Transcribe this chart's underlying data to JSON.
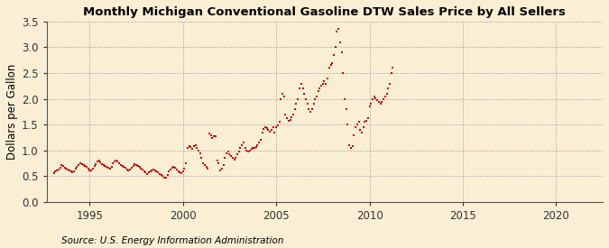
{
  "title": "Monthly Michigan Conventional Gasoline DTW Sales Price by All Sellers",
  "ylabel": "Dollars per Gallon",
  "source": "Source: U.S. Energy Information Administration",
  "background_color": "#faefd4",
  "plot_bg_color": "#faefd4",
  "marker_color": "#cc0000",
  "xlim": [
    1992.7,
    2022.5
  ],
  "ylim": [
    0.0,
    3.5
  ],
  "yticks": [
    0.0,
    0.5,
    1.0,
    1.5,
    2.0,
    2.5,
    3.0,
    3.5
  ],
  "xticks": [
    1995,
    2000,
    2005,
    2010,
    2015,
    2020
  ],
  "data": [
    [
      1993.08,
      0.56
    ],
    [
      1993.17,
      0.59
    ],
    [
      1993.25,
      0.62
    ],
    [
      1993.33,
      0.63
    ],
    [
      1993.42,
      0.67
    ],
    [
      1993.5,
      0.72
    ],
    [
      1993.58,
      0.7
    ],
    [
      1993.67,
      0.67
    ],
    [
      1993.75,
      0.64
    ],
    [
      1993.83,
      0.63
    ],
    [
      1993.92,
      0.62
    ],
    [
      1994.0,
      0.6
    ],
    [
      1994.08,
      0.58
    ],
    [
      1994.17,
      0.6
    ],
    [
      1994.25,
      0.65
    ],
    [
      1994.33,
      0.68
    ],
    [
      1994.42,
      0.72
    ],
    [
      1994.5,
      0.75
    ],
    [
      1994.58,
      0.74
    ],
    [
      1994.67,
      0.72
    ],
    [
      1994.75,
      0.7
    ],
    [
      1994.83,
      0.68
    ],
    [
      1994.92,
      0.65
    ],
    [
      1995.0,
      0.62
    ],
    [
      1995.08,
      0.61
    ],
    [
      1995.17,
      0.65
    ],
    [
      1995.25,
      0.7
    ],
    [
      1995.33,
      0.74
    ],
    [
      1995.42,
      0.78
    ],
    [
      1995.5,
      0.8
    ],
    [
      1995.58,
      0.77
    ],
    [
      1995.67,
      0.74
    ],
    [
      1995.75,
      0.72
    ],
    [
      1995.83,
      0.7
    ],
    [
      1995.92,
      0.68
    ],
    [
      1996.0,
      0.66
    ],
    [
      1996.08,
      0.65
    ],
    [
      1996.17,
      0.69
    ],
    [
      1996.25,
      0.75
    ],
    [
      1996.33,
      0.78
    ],
    [
      1996.42,
      0.8
    ],
    [
      1996.5,
      0.78
    ],
    [
      1996.58,
      0.75
    ],
    [
      1996.67,
      0.72
    ],
    [
      1996.75,
      0.7
    ],
    [
      1996.83,
      0.68
    ],
    [
      1996.92,
      0.66
    ],
    [
      1997.0,
      0.63
    ],
    [
      1997.08,
      0.61
    ],
    [
      1997.17,
      0.63
    ],
    [
      1997.25,
      0.67
    ],
    [
      1997.33,
      0.7
    ],
    [
      1997.42,
      0.73
    ],
    [
      1997.5,
      0.72
    ],
    [
      1997.58,
      0.7
    ],
    [
      1997.67,
      0.68
    ],
    [
      1997.75,
      0.65
    ],
    [
      1997.83,
      0.63
    ],
    [
      1997.92,
      0.6
    ],
    [
      1998.0,
      0.57
    ],
    [
      1998.08,
      0.55
    ],
    [
      1998.17,
      0.57
    ],
    [
      1998.25,
      0.6
    ],
    [
      1998.33,
      0.62
    ],
    [
      1998.42,
      0.63
    ],
    [
      1998.5,
      0.62
    ],
    [
      1998.58,
      0.6
    ],
    [
      1998.67,
      0.57
    ],
    [
      1998.75,
      0.55
    ],
    [
      1998.83,
      0.53
    ],
    [
      1998.92,
      0.51
    ],
    [
      1999.0,
      0.48
    ],
    [
      1999.08,
      0.47
    ],
    [
      1999.17,
      0.52
    ],
    [
      1999.25,
      0.59
    ],
    [
      1999.33,
      0.63
    ],
    [
      1999.42,
      0.67
    ],
    [
      1999.5,
      0.68
    ],
    [
      1999.58,
      0.66
    ],
    [
      1999.67,
      0.63
    ],
    [
      1999.75,
      0.6
    ],
    [
      1999.83,
      0.57
    ],
    [
      1999.92,
      0.56
    ],
    [
      2000.0,
      0.6
    ],
    [
      2000.08,
      0.65
    ],
    [
      2000.17,
      0.75
    ],
    [
      2000.25,
      1.05
    ],
    [
      2000.33,
      1.08
    ],
    [
      2000.42,
      1.06
    ],
    [
      2000.5,
      1.04
    ],
    [
      2000.58,
      1.08
    ],
    [
      2000.67,
      1.1
    ],
    [
      2000.75,
      1.05
    ],
    [
      2000.83,
      1.0
    ],
    [
      2000.92,
      0.95
    ],
    [
      2001.0,
      0.85
    ],
    [
      2001.08,
      0.75
    ],
    [
      2001.17,
      0.72
    ],
    [
      2001.25,
      0.68
    ],
    [
      2001.33,
      0.65
    ],
    [
      2001.42,
      1.33
    ],
    [
      2001.5,
      1.3
    ],
    [
      2001.58,
      1.25
    ],
    [
      2001.67,
      1.27
    ],
    [
      2001.75,
      1.28
    ],
    [
      2001.83,
      0.8
    ],
    [
      2001.92,
      0.75
    ],
    [
      2002.0,
      0.62
    ],
    [
      2002.08,
      0.65
    ],
    [
      2002.17,
      0.72
    ],
    [
      2002.25,
      0.85
    ],
    [
      2002.33,
      0.95
    ],
    [
      2002.42,
      0.98
    ],
    [
      2002.5,
      0.92
    ],
    [
      2002.58,
      0.9
    ],
    [
      2002.67,
      0.85
    ],
    [
      2002.75,
      0.82
    ],
    [
      2002.83,
      0.85
    ],
    [
      2002.92,
      0.92
    ],
    [
      2003.0,
      0.98
    ],
    [
      2003.08,
      1.05
    ],
    [
      2003.17,
      1.1
    ],
    [
      2003.25,
      1.15
    ],
    [
      2003.33,
      1.05
    ],
    [
      2003.42,
      1.0
    ],
    [
      2003.5,
      0.98
    ],
    [
      2003.58,
      1.0
    ],
    [
      2003.67,
      1.03
    ],
    [
      2003.75,
      1.05
    ],
    [
      2003.83,
      1.05
    ],
    [
      2003.92,
      1.07
    ],
    [
      2004.0,
      1.1
    ],
    [
      2004.08,
      1.15
    ],
    [
      2004.17,
      1.2
    ],
    [
      2004.25,
      1.35
    ],
    [
      2004.33,
      1.42
    ],
    [
      2004.42,
      1.45
    ],
    [
      2004.5,
      1.43
    ],
    [
      2004.58,
      1.4
    ],
    [
      2004.67,
      1.37
    ],
    [
      2004.75,
      1.4
    ],
    [
      2004.83,
      1.45
    ],
    [
      2004.92,
      1.35
    ],
    [
      2005.0,
      1.45
    ],
    [
      2005.08,
      1.48
    ],
    [
      2005.17,
      1.55
    ],
    [
      2005.25,
      2.0
    ],
    [
      2005.33,
      2.1
    ],
    [
      2005.42,
      2.05
    ],
    [
      2005.5,
      1.7
    ],
    [
      2005.58,
      1.62
    ],
    [
      2005.67,
      1.58
    ],
    [
      2005.75,
      1.6
    ],
    [
      2005.83,
      1.65
    ],
    [
      2005.92,
      1.7
    ],
    [
      2006.0,
      1.8
    ],
    [
      2006.08,
      1.9
    ],
    [
      2006.17,
      2.0
    ],
    [
      2006.25,
      2.2
    ],
    [
      2006.33,
      2.3
    ],
    [
      2006.42,
      2.2
    ],
    [
      2006.5,
      2.1
    ],
    [
      2006.58,
      2.0
    ],
    [
      2006.67,
      1.9
    ],
    [
      2006.75,
      1.8
    ],
    [
      2006.83,
      1.75
    ],
    [
      2006.92,
      1.8
    ],
    [
      2007.0,
      1.9
    ],
    [
      2007.08,
      2.0
    ],
    [
      2007.17,
      2.05
    ],
    [
      2007.25,
      2.15
    ],
    [
      2007.33,
      2.2
    ],
    [
      2007.42,
      2.25
    ],
    [
      2007.5,
      2.3
    ],
    [
      2007.58,
      2.35
    ],
    [
      2007.67,
      2.3
    ],
    [
      2007.75,
      2.4
    ],
    [
      2007.83,
      2.6
    ],
    [
      2007.92,
      2.65
    ],
    [
      2008.0,
      2.7
    ],
    [
      2008.08,
      2.85
    ],
    [
      2008.17,
      3.0
    ],
    [
      2008.25,
      3.3
    ],
    [
      2008.33,
      3.35
    ],
    [
      2008.42,
      3.1
    ],
    [
      2008.5,
      2.9
    ],
    [
      2008.58,
      2.5
    ],
    [
      2008.67,
      2.0
    ],
    [
      2008.75,
      1.8
    ],
    [
      2008.83,
      1.5
    ],
    [
      2008.92,
      1.1
    ],
    [
      2009.0,
      1.05
    ],
    [
      2009.08,
      1.08
    ],
    [
      2009.17,
      1.3
    ],
    [
      2009.25,
      1.45
    ],
    [
      2009.33,
      1.5
    ],
    [
      2009.42,
      1.55
    ],
    [
      2009.5,
      1.4
    ],
    [
      2009.58,
      1.35
    ],
    [
      2009.67,
      1.45
    ],
    [
      2009.75,
      1.55
    ],
    [
      2009.83,
      1.58
    ],
    [
      2009.92,
      1.62
    ],
    [
      2010.0,
      1.85
    ],
    [
      2010.08,
      1.9
    ],
    [
      2010.17,
      2.0
    ],
    [
      2010.25,
      2.05
    ],
    [
      2010.33,
      2.02
    ],
    [
      2010.42,
      1.98
    ],
    [
      2010.5,
      1.95
    ],
    [
      2010.58,
      1.9
    ],
    [
      2010.67,
      1.95
    ],
    [
      2010.75,
      2.0
    ],
    [
      2010.83,
      2.05
    ],
    [
      2010.92,
      2.1
    ],
    [
      2011.0,
      2.2
    ],
    [
      2011.08,
      2.3
    ],
    [
      2011.17,
      2.5
    ],
    [
      2011.25,
      2.6
    ]
  ]
}
